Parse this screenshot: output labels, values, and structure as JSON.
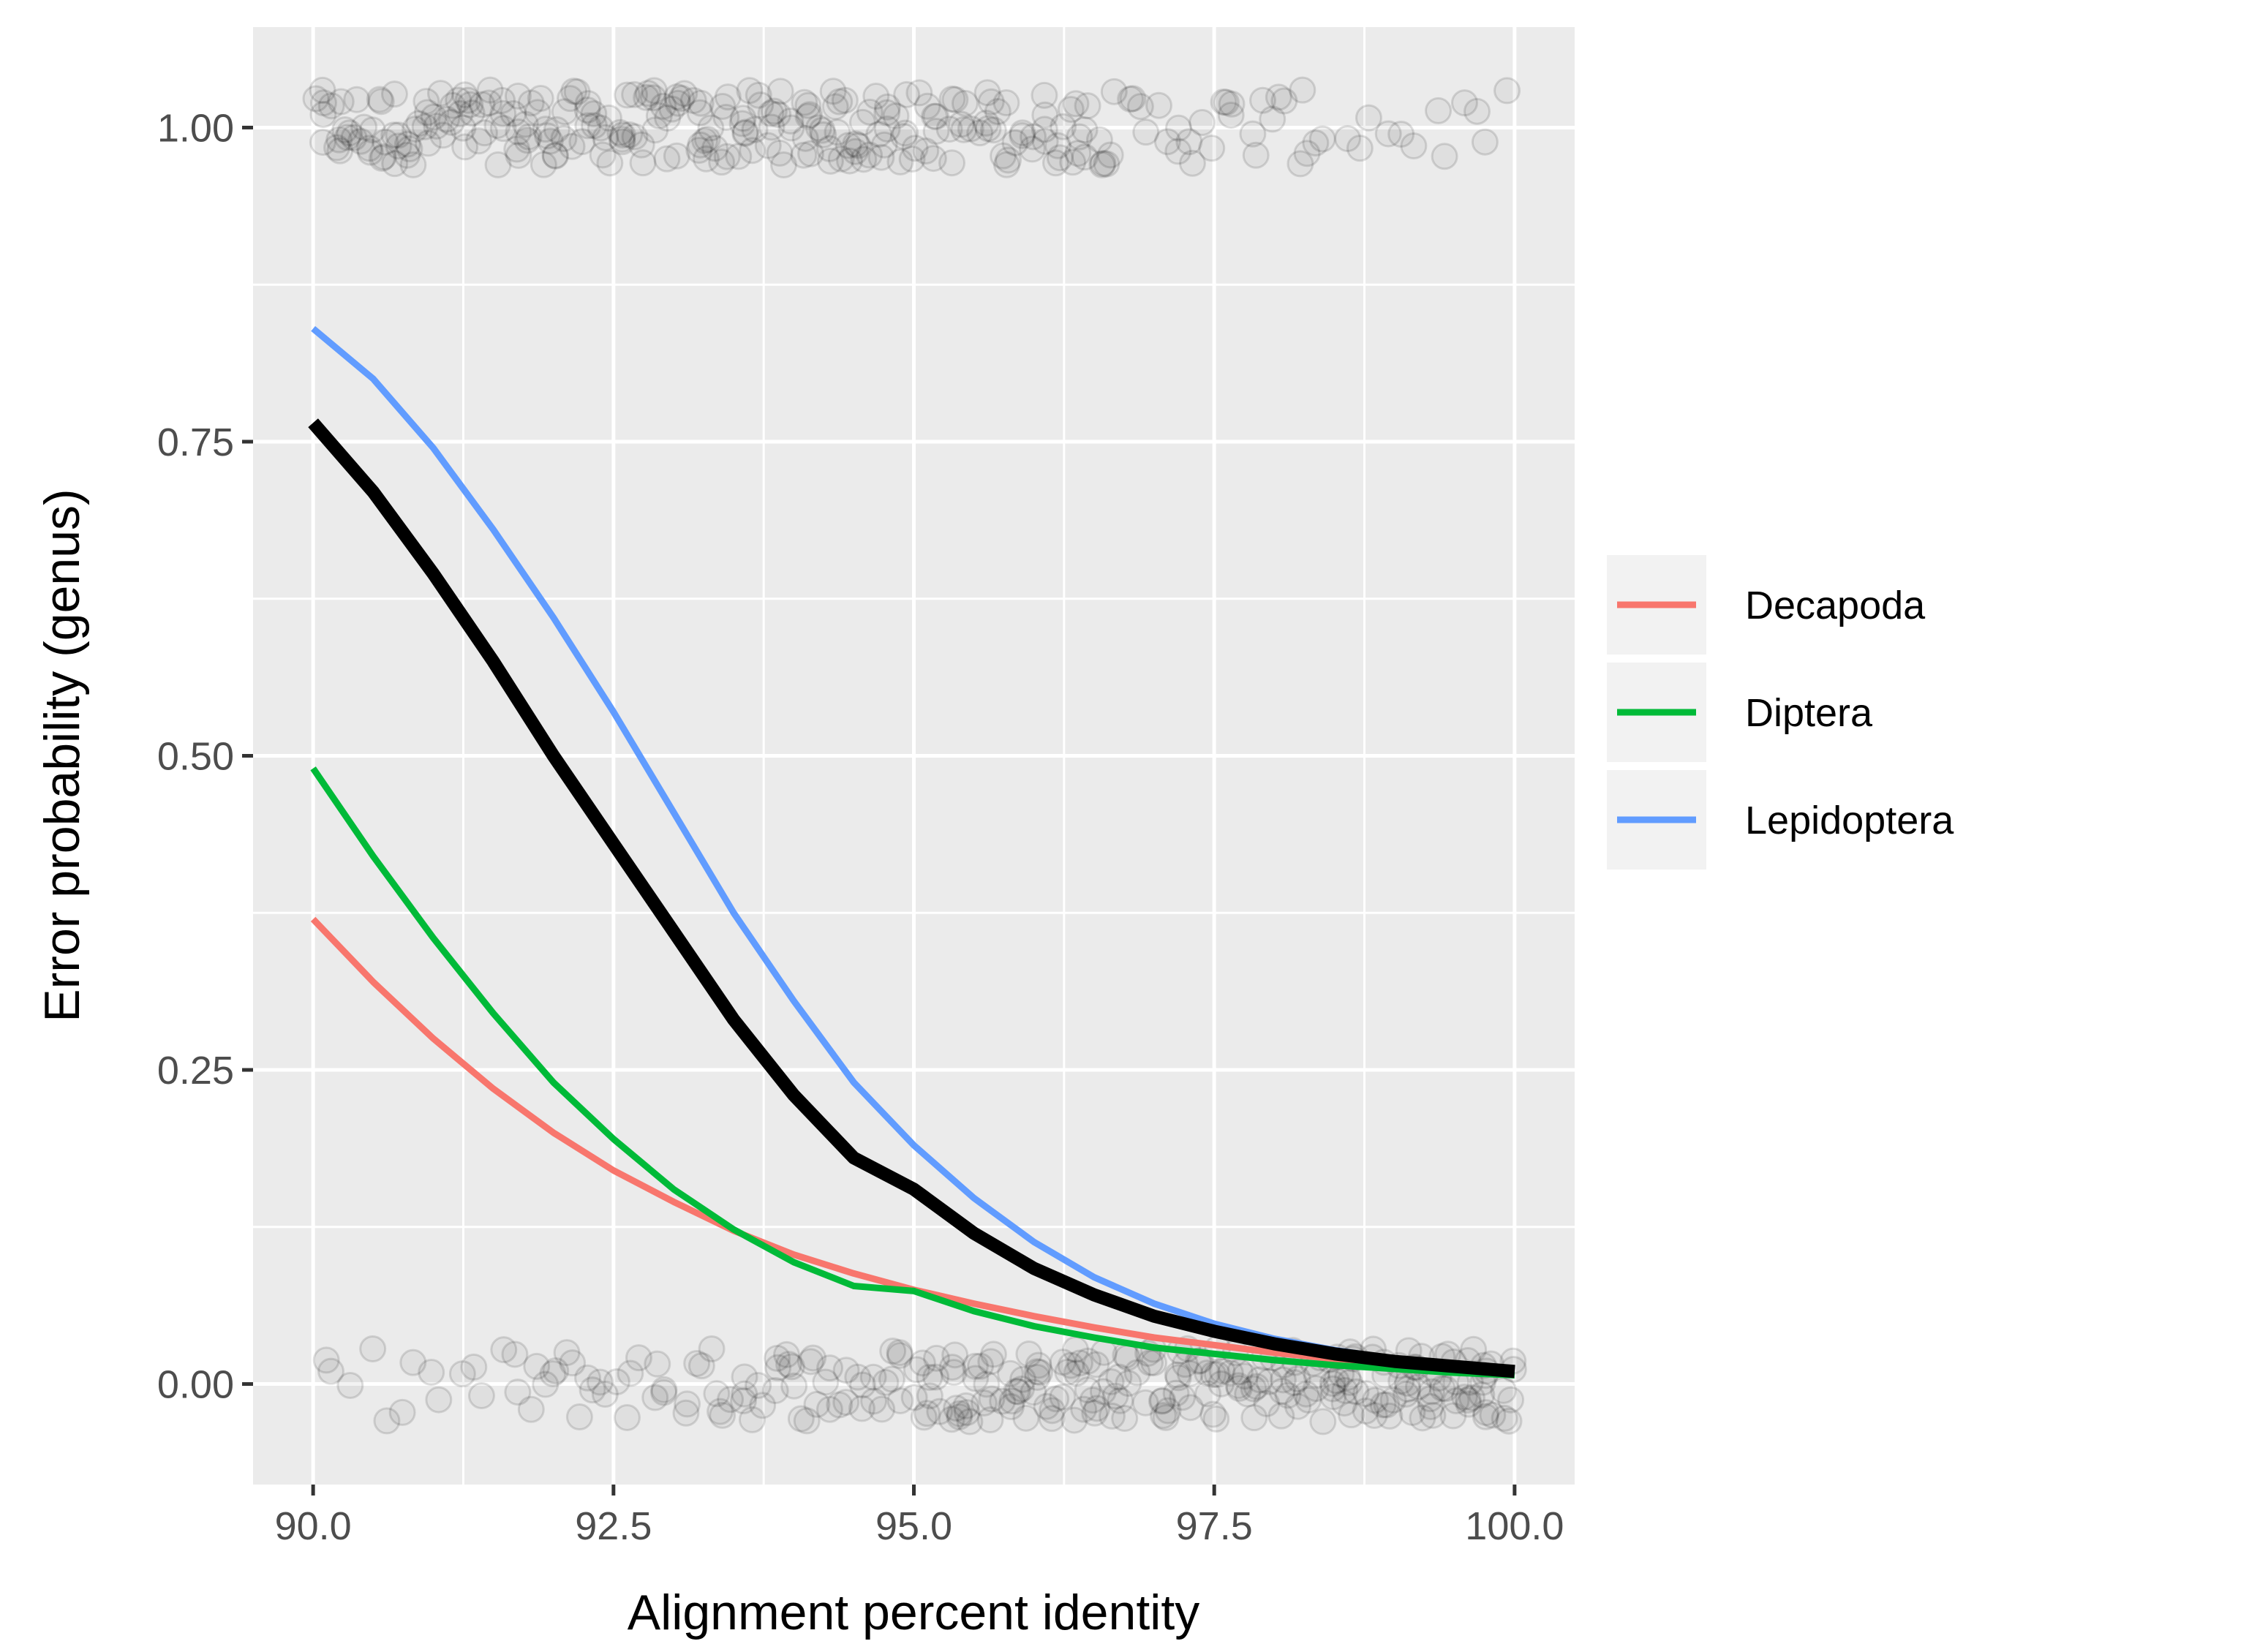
{
  "chart_data": {
    "type": "line",
    "xlabel": "Alignment percent identity",
    "ylabel": "Error probability (genus)",
    "xlim": [
      89.5,
      100.5
    ],
    "ylim": [
      -0.08,
      1.08
    ],
    "x_ticks": [
      90.0,
      92.5,
      95.0,
      97.5,
      100.0
    ],
    "x_tick_labels": [
      "90.0",
      "92.5",
      "95.0",
      "97.5",
      "100.0"
    ],
    "y_ticks": [
      0.0,
      0.25,
      0.5,
      0.75,
      1.0
    ],
    "y_tick_labels": [
      "0.00",
      "0.25",
      "0.50",
      "0.75",
      "1.00"
    ],
    "grid": true,
    "legend_position": "right",
    "x": [
      90,
      90.5,
      91,
      91.5,
      92,
      92.5,
      93,
      93.5,
      94,
      94.5,
      95,
      95.5,
      96,
      96.5,
      97,
      97.5,
      98,
      98.5,
      99,
      99.5,
      100
    ],
    "series": [
      {
        "name": "Decapoda",
        "color": "#F8766D",
        "width": "normal",
        "values": [
          0.37,
          0.32,
          0.275,
          0.235,
          0.2,
          0.17,
          0.145,
          0.122,
          0.103,
          0.088,
          0.075,
          0.064,
          0.054,
          0.045,
          0.037,
          0.031,
          0.025,
          0.02,
          0.016,
          0.013,
          0.01
        ]
      },
      {
        "name": "Diptera",
        "color": "#00BA38",
        "width": "normal",
        "values": [
          0.49,
          0.42,
          0.355,
          0.295,
          0.24,
          0.195,
          0.155,
          0.123,
          0.097,
          0.078,
          0.074,
          0.058,
          0.046,
          0.037,
          0.029,
          0.024,
          0.019,
          0.015,
          0.012,
          0.009,
          0.007
        ]
      },
      {
        "name": "Lepidoptera",
        "color": "#619CFF",
        "width": "normal",
        "values": [
          0.84,
          0.8,
          0.745,
          0.68,
          0.61,
          0.535,
          0.455,
          0.375,
          0.305,
          0.24,
          0.19,
          0.148,
          0.113,
          0.085,
          0.064,
          0.048,
          0.036,
          0.027,
          0.02,
          0.015,
          0.011
        ]
      },
      {
        "name": "",
        "color": "#000000",
        "width": "thick",
        "values": [
          0.765,
          0.71,
          0.645,
          0.575,
          0.5,
          0.43,
          0.36,
          0.29,
          0.23,
          0.18,
          0.155,
          0.12,
          0.092,
          0.071,
          0.054,
          0.042,
          0.032,
          0.024,
          0.018,
          0.014,
          0.01
        ]
      }
    ],
    "points": {
      "color": "#000000",
      "note_levels": [
        0,
        1
      ],
      "x_range": [
        90,
        100
      ],
      "density_at_1": [
        0.85,
        0.85,
        0.75,
        0.6,
        0.35,
        0.2
      ],
      "density_at_0": [
        0.2,
        0.35,
        0.55,
        0.75,
        0.9,
        1.0
      ]
    }
  }
}
